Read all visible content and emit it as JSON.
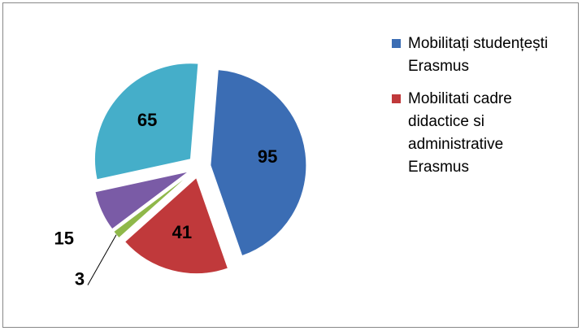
{
  "chart_data": {
    "type": "pie",
    "categories": [
      "Mobilitați studențești Erasmus",
      "Mobilitati cadre didactice si administrative Erasmus",
      null,
      null,
      null
    ],
    "values": [
      95,
      41,
      3,
      15,
      65
    ],
    "colors": [
      "#3b6db4",
      "#c0393b",
      "#8fb84a",
      "#7a5ba6",
      "#45aec9"
    ],
    "legend": "right"
  }
}
